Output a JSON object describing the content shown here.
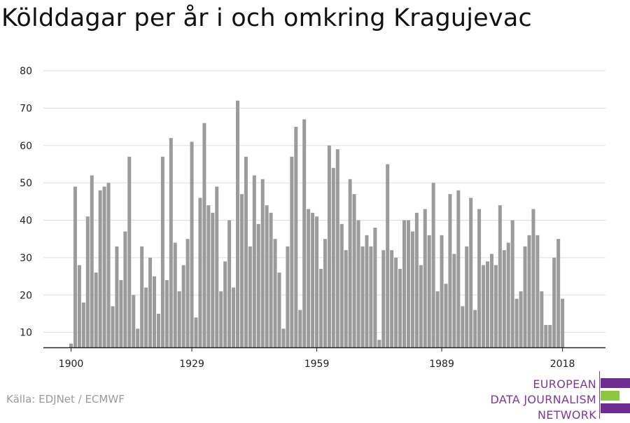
{
  "title": "Kölddagar per år i och omkring Kragujevac",
  "source": "Källa: EDJNet / ECMWF",
  "logo": {
    "lines": [
      "EUROPEAN",
      "DATA JOURNALISM",
      "NETWORK"
    ],
    "colors": {
      "text": "#7b3a96",
      "bar_purple": "#6d2c8f",
      "bar_green": "#8dc63f"
    }
  },
  "colors": {
    "bar": "#9b9b9b",
    "grid": "#dddddd",
    "axis": "#222222",
    "tick_text": "#222222"
  },
  "chart_data": {
    "type": "bar",
    "title": "Kölddagar per år i och omkring Kragujevac",
    "xlabel": "",
    "ylabel": "",
    "ylim": [
      6,
      80
    ],
    "yticks": [
      10,
      20,
      30,
      40,
      50,
      60,
      70,
      80
    ],
    "xticks": [
      1900,
      1929,
      1959,
      1989,
      2018
    ],
    "grid": true,
    "x_start": 1900,
    "x_end": 2021,
    "values": [
      7,
      49,
      28,
      18,
      41,
      52,
      26,
      48,
      49,
      50,
      17,
      33,
      24,
      37,
      57,
      20,
      11,
      33,
      22,
      30,
      25,
      15,
      57,
      24,
      62,
      34,
      21,
      28,
      35,
      61,
      14,
      46,
      66,
      44,
      42,
      49,
      21,
      29,
      40,
      22,
      72,
      47,
      57,
      33,
      52,
      39,
      51,
      44,
      42,
      35,
      26,
      11,
      33,
      57,
      65,
      16,
      67,
      43,
      42,
      41,
      27,
      35,
      60,
      54,
      59,
      39,
      32,
      51,
      47,
      40,
      33,
      36,
      33,
      38,
      8,
      32,
      55,
      32,
      30,
      27,
      40,
      40,
      37,
      42,
      28,
      43,
      36,
      50,
      21,
      36,
      23,
      47,
      31,
      48,
      17,
      33,
      46,
      16,
      43,
      28,
      29,
      31,
      28,
      44,
      32,
      34,
      40,
      19,
      21,
      33,
      36,
      43,
      36,
      21,
      12,
      12,
      30,
      35,
      19,
      6,
      6,
      6
    ]
  }
}
